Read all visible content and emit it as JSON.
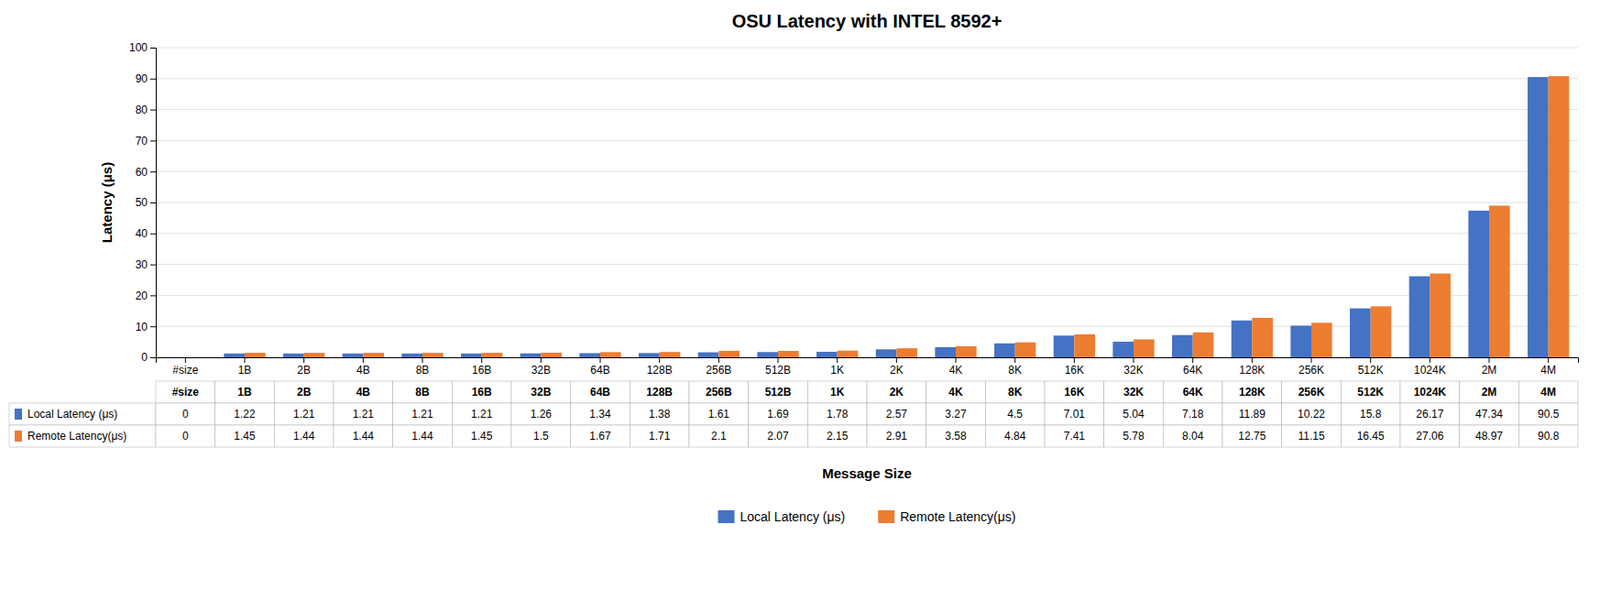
{
  "chart_data": {
    "type": "bar",
    "title": "OSU Latency with INTEL 8592+",
    "xlabel": "Message Size",
    "ylabel": "Latency (μs)",
    "categories": [
      "#size",
      "1B",
      "2B",
      "4B",
      "8B",
      "16B",
      "32B",
      "64B",
      "128B",
      "256B",
      "512B",
      "1K",
      "2K",
      "4K",
      "8K",
      "16K",
      "32K",
      "64K",
      "128K",
      "256K",
      "512K",
      "1024K",
      "2M",
      "4M"
    ],
    "series": [
      {
        "name": "Local Latency (μs)",
        "color": "#4472C4",
        "values": [
          0,
          1.22,
          1.21,
          1.21,
          1.21,
          1.21,
          1.26,
          1.34,
          1.38,
          1.61,
          1.69,
          1.78,
          2.57,
          3.27,
          4.5,
          7.01,
          5.04,
          7.18,
          11.89,
          10.22,
          15.8,
          26.17,
          47.34,
          90.5
        ]
      },
      {
        "name": "Remote Latency(μs)",
        "color": "#ED7D31",
        "values": [
          0,
          1.45,
          1.44,
          1.44,
          1.44,
          1.45,
          1.5,
          1.67,
          1.71,
          2.1,
          2.07,
          2.15,
          2.91,
          3.58,
          4.84,
          7.41,
          5.78,
          8.04,
          12.75,
          11.15,
          16.45,
          27.06,
          48.97,
          90.8
        ]
      }
    ],
    "ylim": [
      0,
      100
    ],
    "yticks": [
      0,
      10,
      20,
      30,
      40,
      50,
      60,
      70,
      80,
      90,
      100
    ],
    "grid": true,
    "legend": "bottom"
  }
}
